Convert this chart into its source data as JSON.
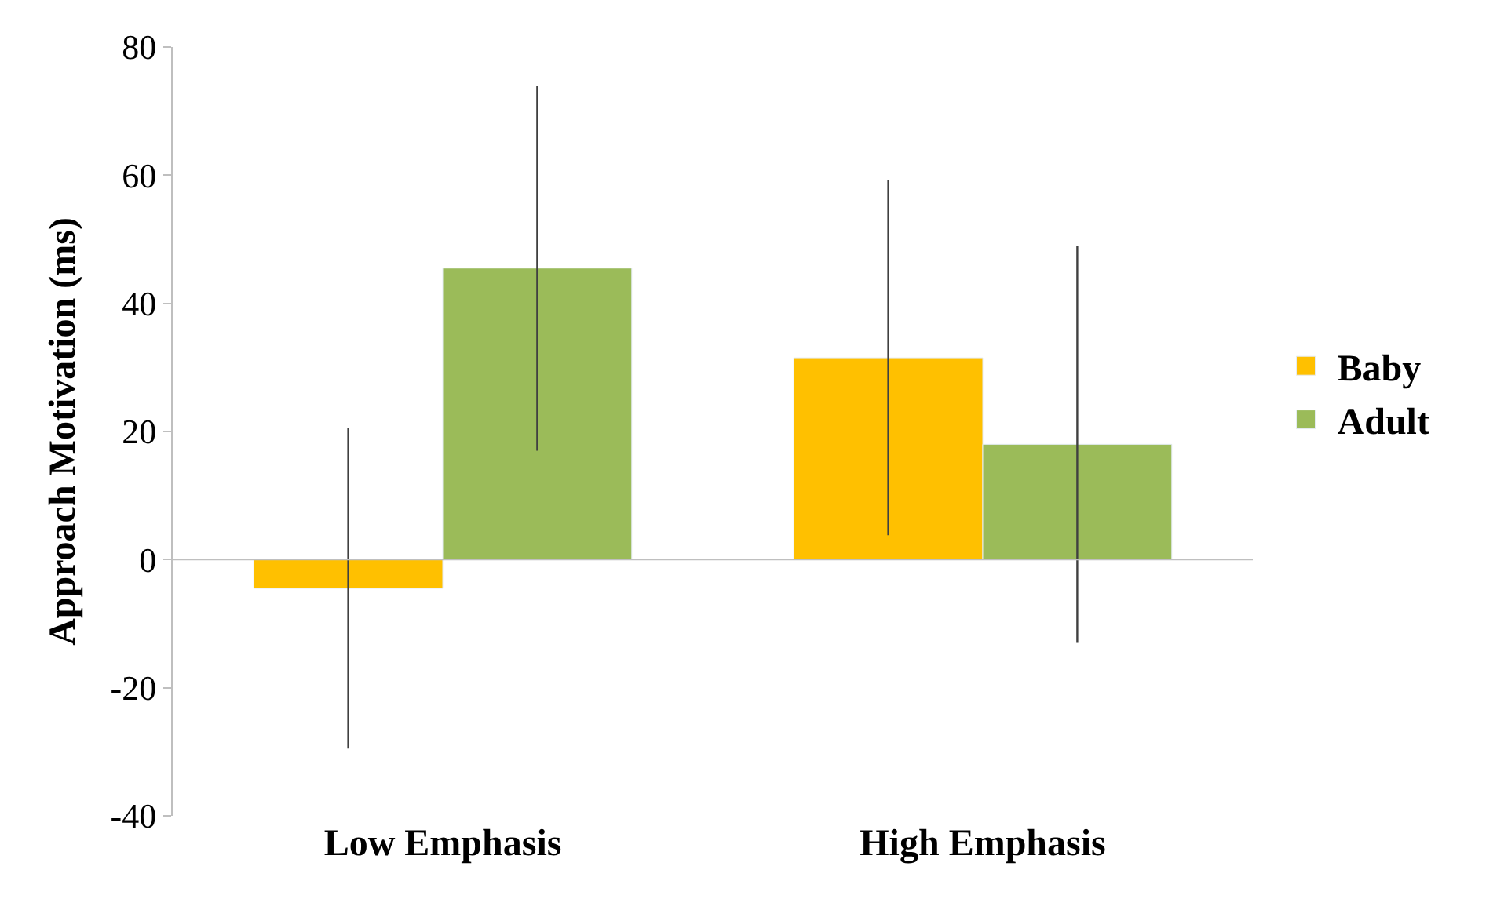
{
  "chart_data": {
    "type": "bar",
    "ylabel": "Approach Motivation (ms)",
    "categories": [
      "Low Emphasis",
      "High Emphasis"
    ],
    "series": [
      {
        "name": "Baby",
        "color": "#ffc000",
        "values": [
          -4.5,
          31.5
        ],
        "errors": [
          25,
          27.7
        ]
      },
      {
        "name": "Adult",
        "color": "#9bbb59",
        "values": [
          45.5,
          18
        ],
        "errors": [
          28.5,
          31
        ]
      }
    ],
    "ylim": [
      -40,
      80
    ],
    "yticks": [
      -40,
      -20,
      0,
      20,
      40,
      60,
      80
    ],
    "legend": "right"
  }
}
